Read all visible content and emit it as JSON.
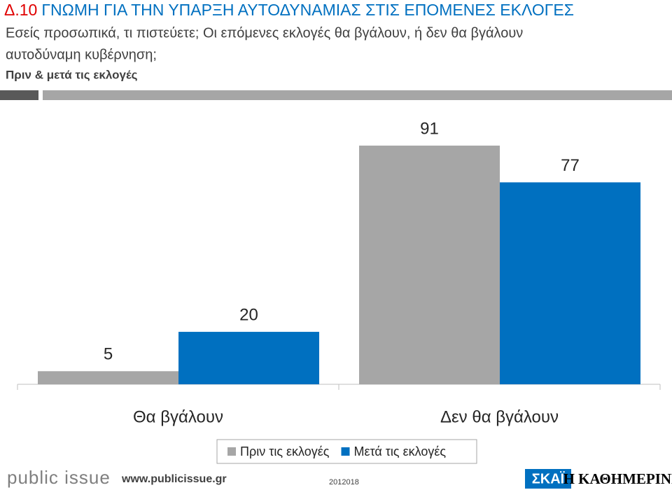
{
  "header": {
    "code": "Δ.10",
    "title": "ΓΝΩΜΗ ΓΙΑ ΤΗΝ ΥΠΑΡΞΗ ΑΥΤΟΔΥΝΑΜΙΑΣ ΣΤΙΣ ΕΠΟΜΕΝΕΣ ΕΚΛΟΓΕΣ",
    "question_line1": "Εσείς προσωπικά, τι πιστεύετε; Οι επόμενες εκλογές θα βγάλουν, ή δεν θα βγάλουν",
    "question_line2": "αυτοδύναμη κυβέρνηση;",
    "note": "Πριν & μετά τις εκλογές"
  },
  "chart_data": {
    "type": "bar",
    "categories": [
      "Θα βγάλουν",
      "Δεν θα βγάλουν"
    ],
    "series": [
      {
        "name": "Πριν τις εκλογές",
        "color": "#a6a6a6",
        "values": [
          5,
          91
        ]
      },
      {
        "name": "Μετά τις εκλογές",
        "color": "#0070c0",
        "values": [
          20,
          77
        ]
      }
    ]
  },
  "footer": {
    "logo": "public issue",
    "url": "www.publicissue.gr",
    "code": "2012018",
    "partner1": "ΣΚΑΪ",
    "partner2": "Η ΚΑΘΗΜΕΡΙΝΗ"
  }
}
